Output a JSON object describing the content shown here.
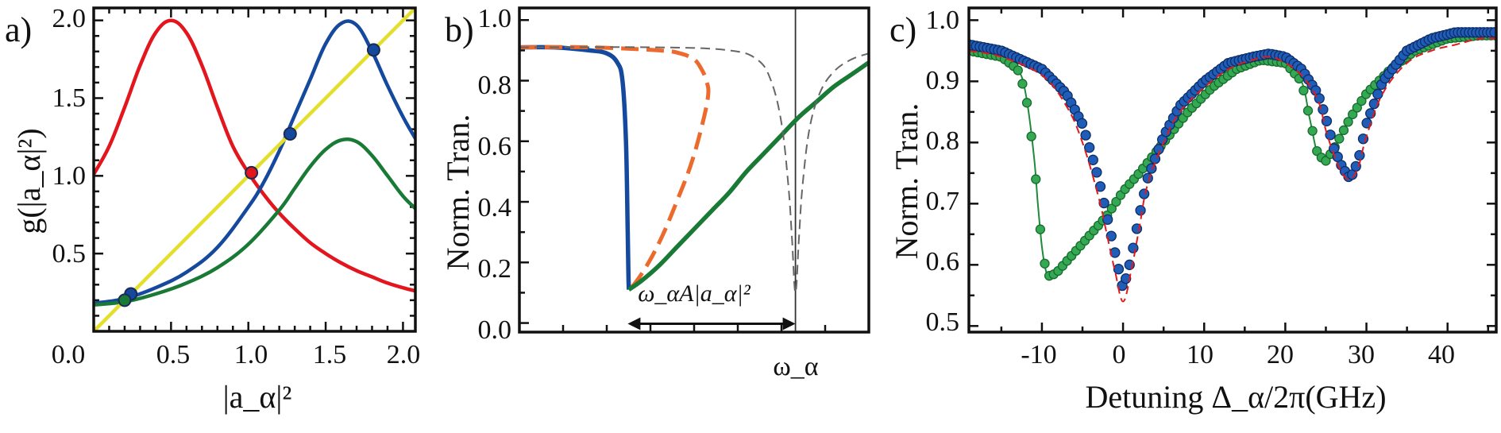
{
  "colors": {
    "red": "#e3161e",
    "blue": "#14499e",
    "green": "#197a35",
    "yellow": "#e3df2c",
    "orange": "#ec6a2d",
    "gray": "#666666",
    "dot_blue": "#1f5db8",
    "dot_green": "#34a853",
    "fit_red": "#e01b1b",
    "black": "#111111"
  },
  "chart_data": [
    {
      "type": "line",
      "panel_label": "a)",
      "xlabel": "|a_α|²",
      "ylabel": "g(|a_α|²)",
      "xlim": [
        0.0,
        2.08
      ],
      "ylim": [
        0.0,
        2.08
      ],
      "x_tick_labels": [
        "0.0",
        "0.5",
        "1.0",
        "1.5",
        "2.0"
      ],
      "y_tick_labels": [
        "0.5",
        "1.0",
        "1.5",
        "2.0"
      ],
      "series": [
        {
          "color": "red",
          "x": [
            0.0,
            0.1,
            0.2,
            0.3,
            0.4,
            0.5,
            0.6,
            0.7,
            0.8,
            0.9,
            1.0,
            1.1,
            1.2,
            1.3,
            1.4,
            1.5,
            1.6,
            1.7,
            1.8,
            1.9,
            2.0,
            2.08
          ],
          "y": [
            1.01,
            1.19,
            1.44,
            1.71,
            1.92,
            2.0,
            1.92,
            1.71,
            1.44,
            1.19,
            1.02,
            0.88,
            0.76,
            0.66,
            0.57,
            0.5,
            0.44,
            0.39,
            0.35,
            0.31,
            0.28,
            0.26
          ]
        },
        {
          "color": "blue",
          "x": [
            0.0,
            0.2,
            0.4,
            0.6,
            0.8,
            1.0,
            1.1,
            1.2,
            1.3,
            1.4,
            1.5,
            1.6,
            1.7,
            1.8,
            1.9,
            2.0,
            2.08
          ],
          "y": [
            0.18,
            0.21,
            0.28,
            0.38,
            0.54,
            0.8,
            0.96,
            1.16,
            1.39,
            1.62,
            1.85,
            1.98,
            1.97,
            1.8,
            1.58,
            1.38,
            1.24
          ]
        },
        {
          "color": "green",
          "x": [
            0.0,
            0.2,
            0.4,
            0.6,
            0.8,
            1.0,
            1.2,
            1.3,
            1.4,
            1.5,
            1.6,
            1.7,
            1.8,
            1.9,
            2.0,
            2.08
          ],
          "y": [
            0.17,
            0.19,
            0.24,
            0.31,
            0.41,
            0.56,
            0.78,
            0.92,
            1.06,
            1.17,
            1.23,
            1.22,
            1.13,
            1.0,
            0.87,
            0.79
          ]
        },
        {
          "color": "yellow",
          "x": [
            0.0,
            2.08
          ],
          "y": [
            0.0,
            2.08
          ]
        }
      ],
      "markers": [
        {
          "x": 1.02,
          "y": 1.02,
          "color": "red"
        },
        {
          "x": 0.24,
          "y": 0.24,
          "color": "blue"
        },
        {
          "x": 1.27,
          "y": 1.27,
          "color": "blue"
        },
        {
          "x": 1.81,
          "y": 1.81,
          "color": "blue"
        },
        {
          "x": 0.2,
          "y": 0.2,
          "color": "green"
        }
      ]
    },
    {
      "type": "line",
      "panel_label": "b)",
      "xlabel": "",
      "ylabel": "Norm.  Tran.",
      "xlim": [
        0.0,
        1.0
      ],
      "ylim": [
        -0.03,
        1.04
      ],
      "x_tick_label": "ω_α",
      "y_tick_labels": [
        "0.0",
        "0.2",
        "0.4",
        "0.6",
        "0.8",
        "1.0"
      ],
      "omega_alpha": 0.79,
      "annotation": "ω_αA|a_α|²",
      "arrow": {
        "x_from": 0.31,
        "x_to": 0.79,
        "y": 0.05
      },
      "series": [
        {
          "color": "blue",
          "dash": "solid",
          "x": [
            0.0,
            0.1,
            0.2,
            0.25,
            0.28,
            0.295,
            0.305,
            0.31,
            0.312,
            0.313,
            0.313
          ],
          "y": [
            0.91,
            0.91,
            0.9,
            0.89,
            0.86,
            0.8,
            0.6,
            0.3,
            0.16,
            0.12,
            0.11
          ]
        },
        {
          "color": "orange",
          "dash": "dashed",
          "x": [
            0.0,
            0.2,
            0.4,
            0.46,
            0.5,
            0.52,
            0.535,
            0.54,
            0.52,
            0.49,
            0.45,
            0.41,
            0.37,
            0.33,
            0.31
          ],
          "y": [
            0.91,
            0.91,
            0.9,
            0.89,
            0.87,
            0.84,
            0.8,
            0.75,
            0.64,
            0.52,
            0.4,
            0.29,
            0.2,
            0.13,
            0.11
          ]
        },
        {
          "color": "green",
          "dash": "solid",
          "x": [
            0.313,
            0.35,
            0.4,
            0.45,
            0.5,
            0.55,
            0.6,
            0.65,
            0.7,
            0.75,
            0.8,
            0.85,
            0.9,
            0.95,
            1.0
          ],
          "y": [
            0.11,
            0.14,
            0.19,
            0.25,
            0.31,
            0.37,
            0.43,
            0.5,
            0.56,
            0.62,
            0.68,
            0.73,
            0.78,
            0.82,
            0.86
          ]
        },
        {
          "color": "gray",
          "dash": "dashed",
          "x": [
            0.0,
            0.4,
            0.6,
            0.68,
            0.72,
            0.75,
            0.77,
            0.78,
            0.79,
            0.8,
            0.81,
            0.83,
            0.86,
            0.9,
            0.95,
            1.0
          ],
          "y": [
            0.91,
            0.91,
            0.9,
            0.87,
            0.8,
            0.66,
            0.45,
            0.28,
            0.1,
            0.28,
            0.45,
            0.64,
            0.76,
            0.83,
            0.87,
            0.89
          ]
        }
      ]
    },
    {
      "type": "scatter",
      "panel_label": "c)",
      "xlabel": "Detuning Δ_α/2π(GHz)",
      "ylabel": "Norm.  Tran.",
      "xlim": [
        -19,
        46
      ],
      "ylim": [
        0.49,
        1.02
      ],
      "x_tick_labels": [
        "-10",
        "0",
        "10",
        "20",
        "30",
        "40"
      ],
      "y_tick_labels": [
        "0.5",
        "0.6",
        "0.7",
        "0.8",
        "0.9",
        "1.0"
      ],
      "series": [
        {
          "color": "dot_blue",
          "marker": "circle",
          "x": [
            -19,
            -15,
            -10,
            -7,
            -5,
            -3,
            -2,
            -1,
            0,
            1,
            2,
            3,
            5,
            7,
            10,
            13,
            16,
            18,
            20,
            22,
            24,
            25,
            26,
            27,
            28,
            29,
            30,
            32,
            35,
            38,
            41,
            44,
            46
          ],
          "y": [
            0.96,
            0.95,
            0.92,
            0.88,
            0.83,
            0.74,
            0.68,
            0.62,
            0.56,
            0.61,
            0.68,
            0.74,
            0.81,
            0.86,
            0.9,
            0.93,
            0.94,
            0.945,
            0.94,
            0.92,
            0.88,
            0.84,
            0.79,
            0.76,
            0.74,
            0.77,
            0.83,
            0.9,
            0.95,
            0.97,
            0.98,
            0.98,
            0.98
          ]
        },
        {
          "color": "dot_green",
          "marker": "circle",
          "x": [
            -19,
            -15,
            -13,
            -12,
            -11,
            -10.5,
            -10,
            -9.5,
            -9,
            -8,
            -6,
            -4,
            -2,
            0,
            2,
            5,
            8,
            11,
            14,
            17,
            20,
            22,
            23,
            24,
            25,
            26,
            28,
            30,
            33,
            36,
            40,
            44,
            46
          ],
          "y": [
            0.95,
            0.94,
            0.92,
            0.88,
            0.78,
            0.7,
            0.63,
            0.59,
            0.58,
            0.59,
            0.62,
            0.65,
            0.68,
            0.72,
            0.75,
            0.8,
            0.85,
            0.89,
            0.92,
            0.935,
            0.93,
            0.9,
            0.84,
            0.78,
            0.77,
            0.79,
            0.84,
            0.88,
            0.92,
            0.95,
            0.97,
            0.975,
            0.975
          ]
        },
        {
          "color": "fit_red",
          "dash": "dashed",
          "x": [
            -19,
            -15,
            -10,
            -7,
            -5,
            -3,
            -2,
            -1,
            0,
            1,
            2,
            3,
            5,
            7,
            10,
            13,
            16,
            18,
            20,
            22,
            24,
            25,
            26,
            27,
            28,
            29,
            30,
            32,
            35,
            38,
            41,
            44,
            46
          ],
          "y": [
            0.95,
            0.94,
            0.91,
            0.86,
            0.8,
            0.71,
            0.65,
            0.59,
            0.54,
            0.59,
            0.66,
            0.73,
            0.8,
            0.85,
            0.89,
            0.92,
            0.935,
            0.94,
            0.93,
            0.91,
            0.87,
            0.82,
            0.78,
            0.75,
            0.74,
            0.76,
            0.81,
            0.88,
            0.93,
            0.95,
            0.96,
            0.97,
            0.97
          ]
        }
      ]
    }
  ]
}
